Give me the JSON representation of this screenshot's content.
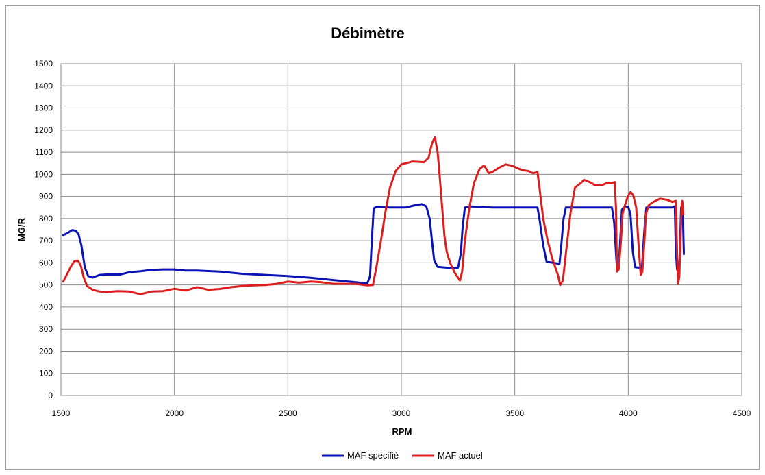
{
  "chart_data": {
    "type": "line",
    "title": "Débimètre",
    "xlabel": "RPM",
    "ylabel": "MG/R",
    "xlim": [
      1500,
      4500
    ],
    "ylim": [
      0,
      1500
    ],
    "x_ticks": [
      1500,
      2000,
      2500,
      3000,
      3500,
      4000,
      4500
    ],
    "y_ticks": [
      0,
      100,
      200,
      300,
      400,
      500,
      600,
      700,
      800,
      900,
      1000,
      1100,
      1200,
      1300,
      1400,
      1500
    ],
    "grid": true,
    "legend_position": "bottom",
    "series": [
      {
        "name": "MAF specifié",
        "color": "#0a14b4",
        "points": [
          [
            1510,
            725
          ],
          [
            1530,
            735
          ],
          [
            1550,
            748
          ],
          [
            1565,
            745
          ],
          [
            1578,
            728
          ],
          [
            1590,
            680
          ],
          [
            1605,
            580
          ],
          [
            1620,
            540
          ],
          [
            1640,
            533
          ],
          [
            1670,
            545
          ],
          [
            1700,
            547
          ],
          [
            1760,
            547
          ],
          [
            1800,
            557
          ],
          [
            1850,
            562
          ],
          [
            1900,
            568
          ],
          [
            1950,
            570
          ],
          [
            2000,
            570
          ],
          [
            2050,
            565
          ],
          [
            2100,
            565
          ],
          [
            2200,
            560
          ],
          [
            2300,
            550
          ],
          [
            2400,
            545
          ],
          [
            2500,
            540
          ],
          [
            2600,
            532
          ],
          [
            2700,
            522
          ],
          [
            2800,
            512
          ],
          [
            2850,
            506
          ],
          [
            2862,
            540
          ],
          [
            2870,
            700
          ],
          [
            2878,
            845
          ],
          [
            2890,
            853
          ],
          [
            2950,
            850
          ],
          [
            3020,
            850
          ],
          [
            3060,
            860
          ],
          [
            3090,
            865
          ],
          [
            3110,
            855
          ],
          [
            3125,
            800
          ],
          [
            3135,
            700
          ],
          [
            3145,
            610
          ],
          [
            3160,
            582
          ],
          [
            3200,
            578
          ],
          [
            3250,
            578
          ],
          [
            3262,
            640
          ],
          [
            3270,
            760
          ],
          [
            3280,
            850
          ],
          [
            3300,
            855
          ],
          [
            3400,
            850
          ],
          [
            3500,
            850
          ],
          [
            3600,
            850
          ],
          [
            3610,
            790
          ],
          [
            3625,
            680
          ],
          [
            3640,
            605
          ],
          [
            3670,
            600
          ],
          [
            3697,
            595
          ],
          [
            3705,
            680
          ],
          [
            3715,
            800
          ],
          [
            3725,
            850
          ],
          [
            3800,
            850
          ],
          [
            3900,
            850
          ],
          [
            3928,
            850
          ],
          [
            3938,
            780
          ],
          [
            3948,
            610
          ],
          [
            3955,
            570
          ],
          [
            3962,
            650
          ],
          [
            3972,
            840
          ],
          [
            3985,
            855
          ],
          [
            4000,
            853
          ],
          [
            4010,
            820
          ],
          [
            4020,
            650
          ],
          [
            4030,
            580
          ],
          [
            4050,
            578
          ],
          [
            4060,
            570
          ],
          [
            4068,
            700
          ],
          [
            4072,
            760
          ],
          [
            4080,
            850
          ],
          [
            4150,
            850
          ],
          [
            4195,
            850
          ],
          [
            4205,
            855
          ],
          [
            4210,
            650
          ],
          [
            4215,
            570
          ],
          [
            4225,
            575
          ],
          [
            4233,
            850
          ],
          [
            4240,
            845
          ],
          [
            4245,
            640
          ]
        ]
      },
      {
        "name": "MAF actuel",
        "color": "#dc1e1e",
        "points": [
          [
            1510,
            515
          ],
          [
            1525,
            545
          ],
          [
            1545,
            585
          ],
          [
            1560,
            608
          ],
          [
            1575,
            610
          ],
          [
            1588,
            585
          ],
          [
            1600,
            535
          ],
          [
            1615,
            495
          ],
          [
            1640,
            478
          ],
          [
            1670,
            470
          ],
          [
            1700,
            468
          ],
          [
            1750,
            472
          ],
          [
            1800,
            470
          ],
          [
            1850,
            458
          ],
          [
            1900,
            470
          ],
          [
            1950,
            472
          ],
          [
            2000,
            483
          ],
          [
            2050,
            475
          ],
          [
            2100,
            490
          ],
          [
            2150,
            478
          ],
          [
            2200,
            482
          ],
          [
            2250,
            490
          ],
          [
            2300,
            495
          ],
          [
            2350,
            498
          ],
          [
            2400,
            500
          ],
          [
            2450,
            505
          ],
          [
            2500,
            515
          ],
          [
            2550,
            510
          ],
          [
            2600,
            515
          ],
          [
            2650,
            512
          ],
          [
            2700,
            505
          ],
          [
            2750,
            505
          ],
          [
            2800,
            505
          ],
          [
            2850,
            498
          ],
          [
            2875,
            500
          ],
          [
            2890,
            580
          ],
          [
            2910,
            700
          ],
          [
            2930,
            830
          ],
          [
            2950,
            940
          ],
          [
            2975,
            1015
          ],
          [
            3000,
            1045
          ],
          [
            3050,
            1058
          ],
          [
            3100,
            1055
          ],
          [
            3120,
            1075
          ],
          [
            3135,
            1140
          ],
          [
            3148,
            1168
          ],
          [
            3160,
            1100
          ],
          [
            3170,
            980
          ],
          [
            3180,
            850
          ],
          [
            3190,
            720
          ],
          [
            3200,
            650
          ],
          [
            3215,
            600
          ],
          [
            3235,
            555
          ],
          [
            3258,
            520
          ],
          [
            3268,
            560
          ],
          [
            3280,
            700
          ],
          [
            3300,
            850
          ],
          [
            3320,
            960
          ],
          [
            3345,
            1025
          ],
          [
            3365,
            1040
          ],
          [
            3385,
            1005
          ],
          [
            3400,
            1010
          ],
          [
            3430,
            1030
          ],
          [
            3460,
            1045
          ],
          [
            3490,
            1038
          ],
          [
            3530,
            1020
          ],
          [
            3560,
            1015
          ],
          [
            3580,
            1005
          ],
          [
            3600,
            1010
          ],
          [
            3610,
            930
          ],
          [
            3625,
            800
          ],
          [
            3645,
            700
          ],
          [
            3665,
            620
          ],
          [
            3690,
            545
          ],
          [
            3700,
            500
          ],
          [
            3712,
            520
          ],
          [
            3725,
            640
          ],
          [
            3745,
            820
          ],
          [
            3765,
            940
          ],
          [
            3790,
            960
          ],
          [
            3805,
            975
          ],
          [
            3830,
            965
          ],
          [
            3855,
            950
          ],
          [
            3880,
            950
          ],
          [
            3905,
            960
          ],
          [
            3925,
            960
          ],
          [
            3940,
            965
          ],
          [
            3946,
            850
          ],
          [
            3950,
            560
          ],
          [
            3958,
            570
          ],
          [
            3968,
            700
          ],
          [
            3975,
            820
          ],
          [
            3985,
            860
          ],
          [
            3998,
            900
          ],
          [
            4010,
            920
          ],
          [
            4022,
            905
          ],
          [
            4035,
            850
          ],
          [
            4048,
            640
          ],
          [
            4055,
            545
          ],
          [
            4062,
            560
          ],
          [
            4070,
            680
          ],
          [
            4078,
            820
          ],
          [
            4090,
            860
          ],
          [
            4110,
            875
          ],
          [
            4140,
            890
          ],
          [
            4170,
            885
          ],
          [
            4195,
            875
          ],
          [
            4210,
            880
          ],
          [
            4215,
            640
          ],
          [
            4220,
            505
          ],
          [
            4225,
            540
          ],
          [
            4230,
            690
          ],
          [
            4235,
            860
          ],
          [
            4238,
            880
          ],
          [
            4242,
            820
          ]
        ]
      }
    ]
  }
}
